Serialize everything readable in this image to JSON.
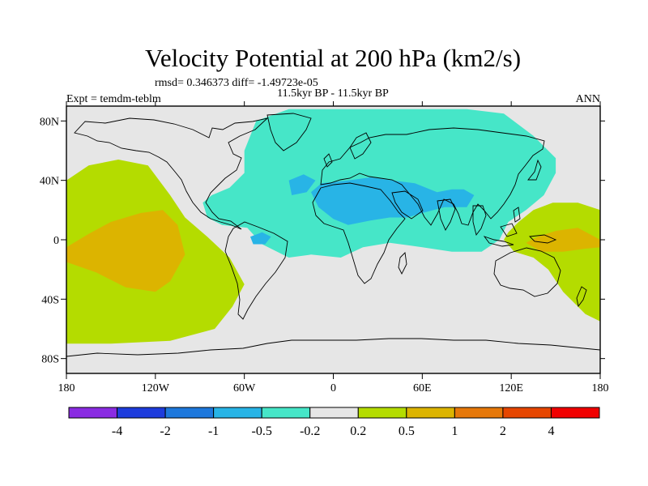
{
  "chart_data": {
    "type": "heatmap",
    "title": "Velocity Potential at 200 hPa (km2/s)",
    "stats_line": "rmsd= 0.346373 diff= -1.49723e-05",
    "left_label": "Expt = temdm-teblm",
    "center_label": "11.5kyr BP - 11.5kyr BP",
    "right_label": "ANN",
    "x_axis": {
      "range": [
        -180,
        180
      ],
      "ticks": [
        -180,
        -120,
        -60,
        0,
        60,
        120,
        180
      ],
      "tick_labels": [
        "180",
        "120W",
        "60W",
        "0",
        "60E",
        "120E",
        "180"
      ]
    },
    "y_axis": {
      "range": [
        -90,
        90
      ],
      "ticks": [
        80,
        40,
        0,
        -40,
        -80
      ],
      "tick_labels": [
        "80N",
        "40N",
        "0",
        "40S",
        "80S"
      ]
    },
    "colorbar": {
      "colors": [
        "#8a2be2",
        "#1e3cdc",
        "#1e78dc",
        "#28b4e6",
        "#46e6c8",
        "#e6e6e6",
        "#b4dc00",
        "#dcb400",
        "#e6780a",
        "#e64600",
        "#f00000"
      ],
      "boundaries": [
        -4,
        -2,
        -1,
        -0.5,
        -0.2,
        0.2,
        0.5,
        1,
        2,
        4
      ],
      "boundary_labels": [
        "-4",
        "-2",
        "-1",
        "-0.5",
        "-0.2",
        "0.2",
        "0.5",
        "1",
        "2",
        "4"
      ]
    },
    "field_regions": [
      {
        "name": "eurasia-africa-atlantic",
        "level": "-0.5 to -0.2",
        "lonlat": [
          [
            -60,
            60
          ],
          [
            -52,
            80
          ],
          [
            -30,
            88
          ],
          [
            20,
            88
          ],
          [
            60,
            88
          ],
          [
            90,
            88
          ],
          [
            115,
            85
          ],
          [
            135,
            70
          ],
          [
            150,
            55
          ],
          [
            150,
            45
          ],
          [
            142,
            30
          ],
          [
            130,
            20
          ],
          [
            118,
            12
          ],
          [
            112,
            0
          ],
          [
            100,
            -8
          ],
          [
            80,
            -8
          ],
          [
            60,
            -5
          ],
          [
            38,
            -2
          ],
          [
            20,
            -5
          ],
          [
            5,
            -12
          ],
          [
            -15,
            -10
          ],
          [
            -30,
            -12
          ],
          [
            -48,
            -3
          ],
          [
            -58,
            8
          ],
          [
            -75,
            10
          ],
          [
            -85,
            15
          ],
          [
            -88,
            25
          ],
          [
            -82,
            30
          ],
          [
            -70,
            35
          ],
          [
            -60,
            45
          ]
        ]
      },
      {
        "name": "north-africa-arabia",
        "level": "-1 to -0.5",
        "lonlat": [
          [
            -8,
            38
          ],
          [
            10,
            40
          ],
          [
            25,
            42
          ],
          [
            40,
            40
          ],
          [
            55,
            38
          ],
          [
            70,
            32
          ],
          [
            80,
            34
          ],
          [
            88,
            34
          ],
          [
            95,
            30
          ],
          [
            90,
            22
          ],
          [
            75,
            22
          ],
          [
            60,
            18
          ],
          [
            50,
            15
          ],
          [
            38,
            15
          ],
          [
            25,
            13
          ],
          [
            10,
            10
          ],
          [
            0,
            14
          ],
          [
            -10,
            22
          ],
          [
            -15,
            32
          ]
        ]
      },
      {
        "name": "north-atlantic-spot",
        "level": "-1 to -0.5",
        "lonlat": [
          [
            -30,
            40
          ],
          [
            -20,
            44
          ],
          [
            -12,
            40
          ],
          [
            -18,
            32
          ],
          [
            -28,
            30
          ]
        ]
      },
      {
        "name": "amazon-spot",
        "level": "-1 to -0.5",
        "lonlat": [
          [
            -56,
            2
          ],
          [
            -48,
            5
          ],
          [
            -42,
            2
          ],
          [
            -46,
            -3
          ],
          [
            -54,
            -3
          ]
        ]
      },
      {
        "name": "pacific-positive",
        "level": "0.2 to 0.5",
        "lonlat": [
          [
            -180,
            40
          ],
          [
            -165,
            50
          ],
          [
            -145,
            54
          ],
          [
            -125,
            50
          ],
          [
            -110,
            30
          ],
          [
            -100,
            15
          ],
          [
            -85,
            2
          ],
          [
            -70,
            -12
          ],
          [
            -60,
            -30
          ],
          [
            -68,
            -45
          ],
          [
            -80,
            -60
          ],
          [
            -110,
            -68
          ],
          [
            -150,
            -70
          ],
          [
            -180,
            -70
          ]
        ]
      },
      {
        "name": "pacific-core",
        "level": "0.5 to 1",
        "lonlat": [
          [
            -180,
            -5
          ],
          [
            -165,
            4
          ],
          [
            -150,
            12
          ],
          [
            -130,
            18
          ],
          [
            -115,
            20
          ],
          [
            -105,
            10
          ],
          [
            -100,
            -10
          ],
          [
            -110,
            -28
          ],
          [
            -120,
            -35
          ],
          [
            -140,
            -32
          ],
          [
            -160,
            -22
          ],
          [
            -180,
            -15
          ]
        ]
      },
      {
        "name": "maritime-continent",
        "level": "0.2 to 0.5",
        "lonlat": [
          [
            180,
            20
          ],
          [
            165,
            25
          ],
          [
            148,
            25
          ],
          [
            135,
            20
          ],
          [
            125,
            12
          ],
          [
            118,
            5
          ],
          [
            115,
            0
          ],
          [
            122,
            -8
          ],
          [
            135,
            -12
          ],
          [
            145,
            -20
          ],
          [
            155,
            -35
          ],
          [
            170,
            -50
          ],
          [
            180,
            -55
          ]
        ]
      },
      {
        "name": "maritime-continent-core",
        "level": "0.5 to 1",
        "lonlat": [
          [
            180,
            0
          ],
          [
            165,
            8
          ],
          [
            150,
            6
          ],
          [
            138,
            2
          ],
          [
            130,
            -2
          ],
          [
            140,
            -8
          ],
          [
            155,
            -8
          ],
          [
            170,
            -6
          ],
          [
            180,
            -5
          ]
        ]
      }
    ],
    "grid": false,
    "projection": "cylindrical-equidistant"
  }
}
